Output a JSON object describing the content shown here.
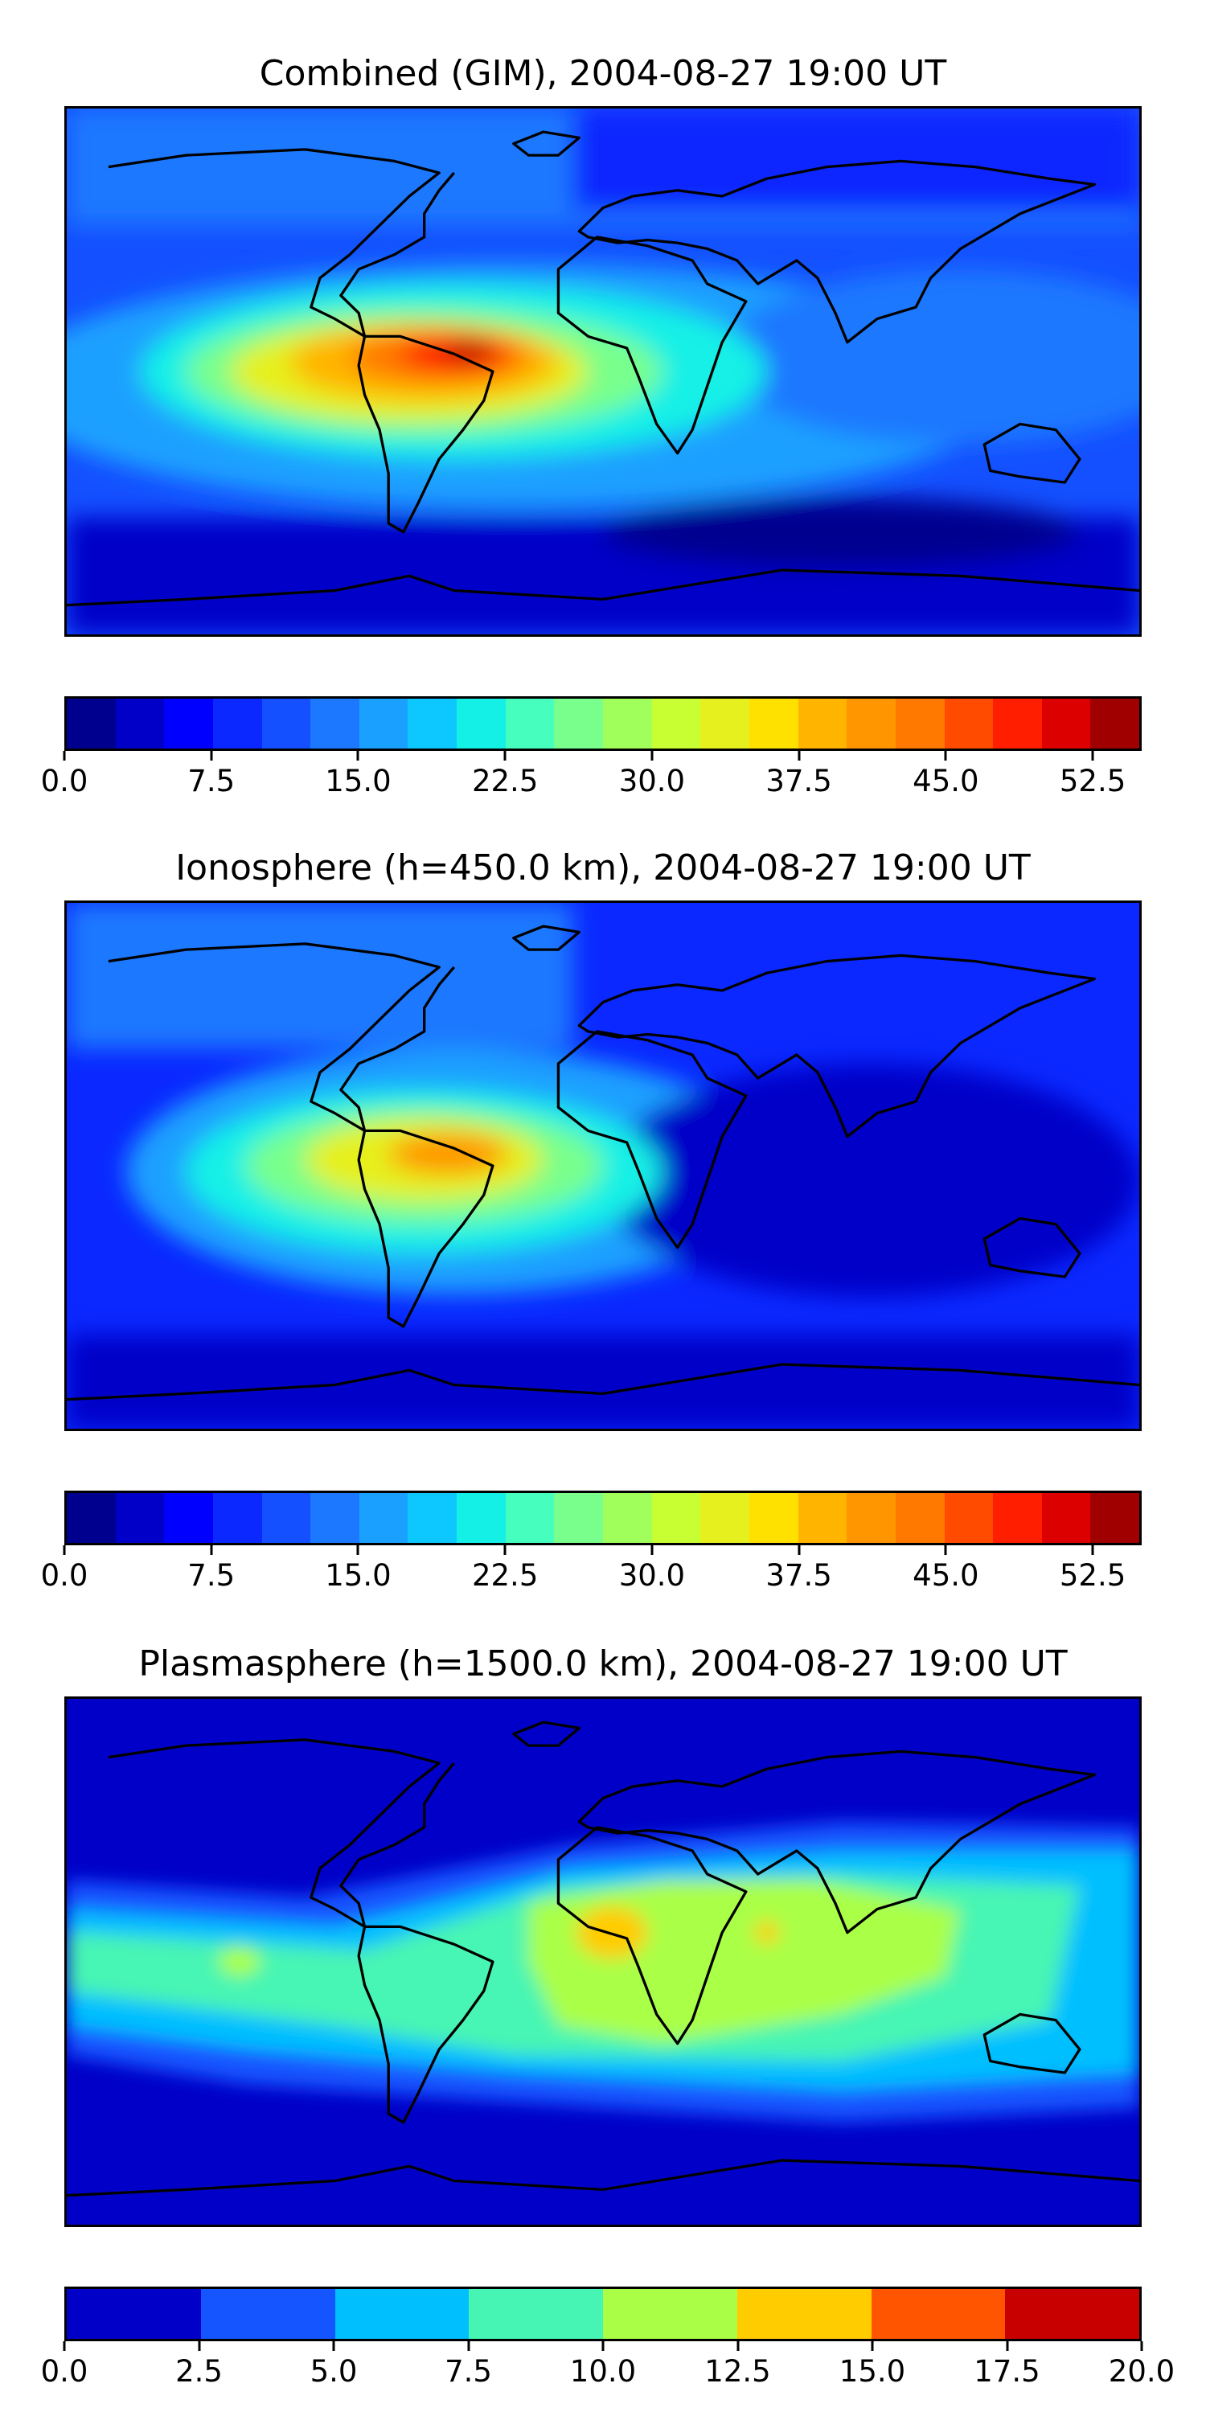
{
  "chart_data": [
    {
      "type": "heatmap",
      "title": "Combined (GIM), 2004-08-27 19:00 UT",
      "colorbar": {
        "ticks": [
          "0.0",
          "7.5",
          "15.0",
          "22.5",
          "30.0",
          "37.5",
          "45.0",
          "52.5"
        ],
        "range": [
          0,
          55
        ],
        "levels": 22,
        "colors": [
          "#00008f",
          "#0000c8",
          "#0000ff",
          "#0a28ff",
          "#1450ff",
          "#1c78ff",
          "#1aa0ff",
          "#0dc8ff",
          "#14f0e6",
          "#46ffbe",
          "#78ff8c",
          "#a0ff5a",
          "#c8ff32",
          "#e6f01e",
          "#ffe100",
          "#ffb400",
          "#ff9600",
          "#ff7800",
          "#ff4b00",
          "#ff1e00",
          "#dc0000",
          "#a00000"
        ]
      },
      "peak_value_approx": 55,
      "peak_region": "tropical South America / equatorial Atlantic"
    },
    {
      "type": "heatmap",
      "title": "Ionosphere  (h=450.0 km), 2004-08-27 19:00 UT",
      "colorbar": {
        "ticks": [
          "0.0",
          "7.5",
          "15.0",
          "22.5",
          "30.0",
          "37.5",
          "45.0",
          "52.5"
        ],
        "range": [
          0,
          55
        ],
        "levels": 22,
        "colors": [
          "#00008f",
          "#0000c8",
          "#0000ff",
          "#0a28ff",
          "#1450ff",
          "#1c78ff",
          "#1aa0ff",
          "#0dc8ff",
          "#14f0e6",
          "#46ffbe",
          "#78ff8c",
          "#a0ff5a",
          "#c8ff32",
          "#e6f01e",
          "#ffe100",
          "#ffb400",
          "#ff9600",
          "#ff7800",
          "#ff4b00",
          "#ff1e00",
          "#dc0000",
          "#a00000"
        ]
      },
      "peak_value_approx": 42,
      "peak_region": "northern South America"
    },
    {
      "type": "heatmap",
      "title": "Plasmasphere (h=1500.0 km), 2004-08-27 19:00 UT",
      "colorbar": {
        "ticks": [
          "0.0",
          "2.5",
          "5.0",
          "7.5",
          "10.0",
          "12.5",
          "15.0",
          "17.5",
          "20.0"
        ],
        "range": [
          0,
          20
        ],
        "levels": 8,
        "colors": [
          "#0000c8",
          "#1455ff",
          "#00bfff",
          "#46f5b4",
          "#aaff46",
          "#ffcc00",
          "#ff5500",
          "#c80000"
        ]
      },
      "peak_value_approx": 15,
      "peak_region": "West Africa / Horn of Africa"
    }
  ]
}
